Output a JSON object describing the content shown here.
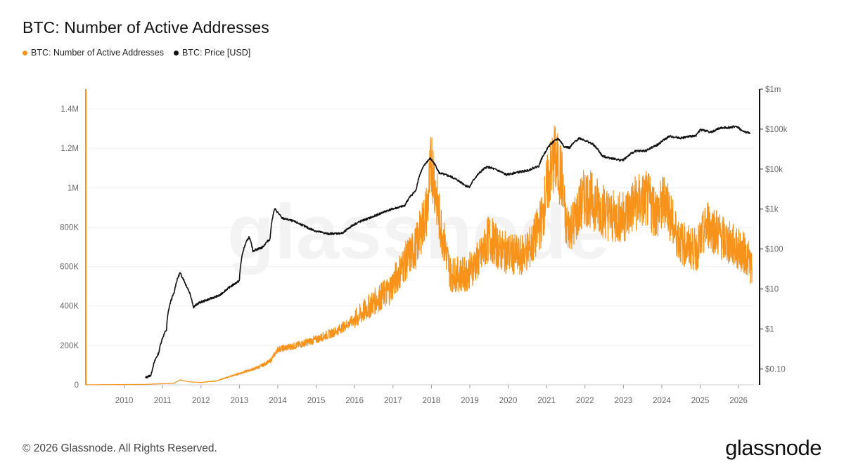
{
  "header": {
    "title": "BTC: Number of Active Addresses"
  },
  "legend": [
    {
      "label": "BTC: Number of Active Addresses",
      "color": "#f7931a"
    },
    {
      "label": "BTC: Price [USD]",
      "color": "#111111"
    }
  ],
  "footer": {
    "copyright": "© 2026 Glassnode. All Rights Reserved.",
    "brand": "glassnode"
  },
  "watermark": "glassnode",
  "chart_data": {
    "type": "line",
    "title": "BTC: Number of Active Addresses",
    "x_range": [
      2009.0,
      2026.4
    ],
    "x_ticks": [
      "2010",
      "2011",
      "2012",
      "2013",
      "2014",
      "2015",
      "2016",
      "2017",
      "2018",
      "2019",
      "2020",
      "2021",
      "2022",
      "2023",
      "2024",
      "2025",
      "2026"
    ],
    "y_left": {
      "ticks": [
        "0",
        "200K",
        "400K",
        "600K",
        "800K",
        "1M",
        "1.2M",
        "1.4M"
      ],
      "tick_values": [
        0,
        200000,
        400000,
        600000,
        800000,
        1000000,
        1200000,
        1400000
      ],
      "ylim": [
        0,
        1500000
      ]
    },
    "y_right": {
      "scale": "log",
      "ticks": [
        "$0.10",
        "$1",
        "$10",
        "$100",
        "$1k",
        "$10k",
        "$100k",
        "$1m"
      ],
      "tick_values": [
        0.1,
        1,
        10,
        100,
        1000,
        10000,
        100000,
        1000000
      ],
      "ylim": [
        0.04,
        1000000
      ]
    },
    "grid": true,
    "legend_position": "top-left",
    "series": [
      {
        "name": "BTC: Number of Active Addresses",
        "axis": "left",
        "color": "#f7931a",
        "x": [
          2009.0,
          2010.5,
          2011.3,
          2011.45,
          2011.7,
          2012.0,
          2012.4,
          2012.8,
          2013.2,
          2013.5,
          2013.8,
          2014.0,
          2014.5,
          2015.0,
          2015.5,
          2016.0,
          2016.5,
          2016.9,
          2017.3,
          2017.6,
          2017.9,
          2018.0,
          2018.2,
          2018.5,
          2018.9,
          2019.3,
          2019.5,
          2019.8,
          2020.3,
          2020.6,
          2020.9,
          2021.0,
          2021.2,
          2021.4,
          2021.5,
          2021.7,
          2022.0,
          2022.4,
          2022.7,
          2023.0,
          2023.3,
          2023.6,
          2023.9,
          2024.1,
          2024.3,
          2024.5,
          2024.9,
          2025.2,
          2025.6,
          2025.9,
          2026.2,
          2026.35
        ],
        "y": [
          500,
          2000,
          8000,
          25000,
          15000,
          12000,
          20000,
          45000,
          70000,
          90000,
          120000,
          180000,
          200000,
          230000,
          270000,
          330000,
          420000,
          480000,
          620000,
          700000,
          900000,
          1150000,
          850000,
          560000,
          560000,
          650000,
          750000,
          680000,
          650000,
          700000,
          850000,
          1000000,
          1150000,
          1050000,
          800000,
          820000,
          960000,
          900000,
          850000,
          850000,
          920000,
          940000,
          870000,
          950000,
          800000,
          720000,
          680000,
          820000,
          740000,
          700000,
          660000,
          590000
        ]
      },
      {
        "name": "BTC: Price [USD]",
        "axis": "right",
        "color": "#111111",
        "x": [
          2010.55,
          2010.7,
          2010.9,
          2011.1,
          2011.3,
          2011.45,
          2011.6,
          2011.8,
          2011.95,
          2012.2,
          2012.5,
          2012.8,
          2013.0,
          2013.25,
          2013.35,
          2013.6,
          2013.8,
          2013.92,
          2014.1,
          2014.4,
          2014.8,
          2015.0,
          2015.3,
          2015.7,
          2016.0,
          2016.5,
          2016.9,
          2017.3,
          2017.6,
          2017.9,
          2017.97,
          2018.2,
          2018.5,
          2018.9,
          2019.0,
          2019.45,
          2019.7,
          2019.95,
          2020.2,
          2020.5,
          2020.8,
          2020.95,
          2021.1,
          2021.3,
          2021.45,
          2021.6,
          2021.85,
          2022.2,
          2022.45,
          2022.9,
          2023.0,
          2023.3,
          2023.6,
          2023.9,
          2024.2,
          2024.5,
          2024.9,
          2025.0,
          2025.3,
          2025.5,
          2025.8,
          2025.95,
          2026.1,
          2026.3
        ],
        "y": [
          0.06,
          0.07,
          0.25,
          0.95,
          8,
          25,
          13,
          3.5,
          4.5,
          5.5,
          7,
          12,
          16,
          200,
          90,
          110,
          180,
          1000,
          600,
          500,
          330,
          280,
          240,
          250,
          420,
          650,
          950,
          1200,
          2900,
          16000,
          18500,
          8000,
          6500,
          3800,
          3600,
          11500,
          9500,
          7200,
          8200,
          9200,
          12000,
          25000,
          42000,
          58000,
          37000,
          34000,
          60000,
          42000,
          21000,
          16800,
          17000,
          28000,
          29000,
          41000,
          66000,
          60000,
          70000,
          97000,
          84000,
          106000,
          112000,
          118000,
          88000,
          80000
        ]
      }
    ]
  }
}
